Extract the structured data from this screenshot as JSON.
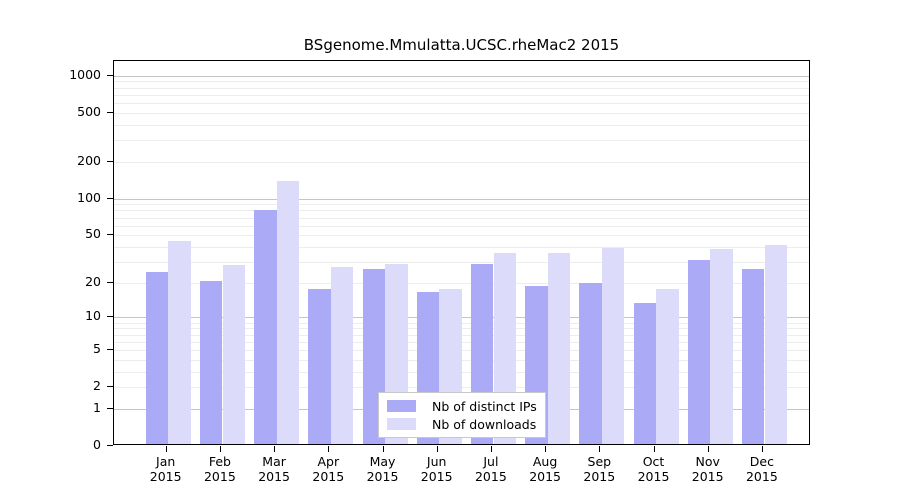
{
  "chart_data": {
    "type": "bar",
    "title": "BSgenome.Mmulatta.UCSC.rheMac2 2015",
    "categories": [
      "Jan",
      "Feb",
      "Mar",
      "Apr",
      "May",
      "Jun",
      "Jul",
      "Aug",
      "Sep",
      "Oct",
      "Nov",
      "Dec"
    ],
    "category_year": "2015",
    "series": [
      {
        "name": "Nb of distinct IPs",
        "color": "#aaaaf6",
        "values": [
          24,
          20,
          78,
          17,
          25,
          16,
          28,
          18,
          19,
          13,
          30,
          25
        ]
      },
      {
        "name": "Nb of downloads",
        "color": "#dcdcfa",
        "values": [
          43,
          27,
          134,
          26,
          28,
          17,
          34,
          34,
          38,
          17,
          37,
          40
        ]
      }
    ],
    "xlabel": "",
    "ylabel": "",
    "y_scale": "log10(value+1)",
    "ylim": [
      0,
      1300
    ],
    "y_tick_values": [
      0,
      1,
      2,
      5,
      10,
      20,
      50,
      100,
      200,
      500,
      1000
    ],
    "y_tick_labels": [
      "0",
      "1",
      "2",
      "5",
      "10",
      "20",
      "50",
      "100",
      "200",
      "500",
      "1000"
    ],
    "y_major_gridlines": [
      1,
      10,
      100,
      1000
    ],
    "y_minor_gridlines": [
      2,
      3,
      4,
      5,
      6,
      7,
      8,
      9,
      20,
      30,
      40,
      50,
      60,
      70,
      80,
      90,
      200,
      300,
      400,
      500,
      600,
      700,
      800,
      900
    ],
    "grid": true,
    "legend_position": "inside-bottom-center"
  },
  "colors": {
    "bar_distinct_ips": "#aaaaf6",
    "bar_downloads": "#dcdcfa",
    "gridline_major": "#c5c5c5",
    "gridline_minor": "#ededed",
    "axis": "#000000",
    "background": "#ffffff",
    "legend_border": "#c9c9c9"
  }
}
